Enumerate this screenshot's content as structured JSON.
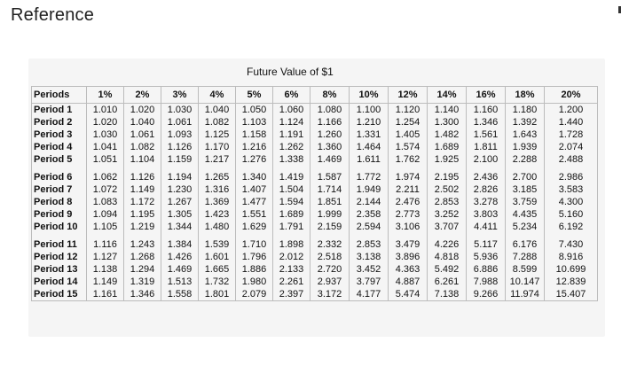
{
  "page": {
    "title": "Reference"
  },
  "table": {
    "title": "Future Value of $1",
    "corner_header": "Periods",
    "rate_headers": [
      "1%",
      "2%",
      "3%",
      "4%",
      "5%",
      "6%",
      "8%",
      "10%",
      "12%",
      "14%",
      "16%",
      "18%",
      "20%"
    ],
    "rows": [
      {
        "label": "Period 1",
        "values": [
          "1.010",
          "1.020",
          "1.030",
          "1.040",
          "1.050",
          "1.060",
          "1.080",
          "1.100",
          "1.120",
          "1.140",
          "1.160",
          "1.180",
          "1.200"
        ]
      },
      {
        "label": "Period 2",
        "values": [
          "1.020",
          "1.040",
          "1.061",
          "1.082",
          "1.103",
          "1.124",
          "1.166",
          "1.210",
          "1.254",
          "1.300",
          "1.346",
          "1.392",
          "1.440"
        ]
      },
      {
        "label": "Period 3",
        "values": [
          "1.030",
          "1.061",
          "1.093",
          "1.125",
          "1.158",
          "1.191",
          "1.260",
          "1.331",
          "1.405",
          "1.482",
          "1.561",
          "1.643",
          "1.728"
        ]
      },
      {
        "label": "Period 4",
        "values": [
          "1.041",
          "1.082",
          "1.126",
          "1.170",
          "1.216",
          "1.262",
          "1.360",
          "1.464",
          "1.574",
          "1.689",
          "1.811",
          "1.939",
          "2.074"
        ]
      },
      {
        "label": "Period 5",
        "values": [
          "1.051",
          "1.104",
          "1.159",
          "1.217",
          "1.276",
          "1.338",
          "1.469",
          "1.611",
          "1.762",
          "1.925",
          "2.100",
          "2.288",
          "2.488"
        ]
      },
      {
        "label": "Period 6",
        "values": [
          "1.062",
          "1.126",
          "1.194",
          "1.265",
          "1.340",
          "1.419",
          "1.587",
          "1.772",
          "1.974",
          "2.195",
          "2.436",
          "2.700",
          "2.986"
        ]
      },
      {
        "label": "Period 7",
        "values": [
          "1.072",
          "1.149",
          "1.230",
          "1.316",
          "1.407",
          "1.504",
          "1.714",
          "1.949",
          "2.211",
          "2.502",
          "2.826",
          "3.185",
          "3.583"
        ]
      },
      {
        "label": "Period 8",
        "values": [
          "1.083",
          "1.172",
          "1.267",
          "1.369",
          "1.477",
          "1.594",
          "1.851",
          "2.144",
          "2.476",
          "2.853",
          "3.278",
          "3.759",
          "4.300"
        ]
      },
      {
        "label": "Period 9",
        "values": [
          "1.094",
          "1.195",
          "1.305",
          "1.423",
          "1.551",
          "1.689",
          "1.999",
          "2.358",
          "2.773",
          "3.252",
          "3.803",
          "4.435",
          "5.160"
        ]
      },
      {
        "label": "Period 10",
        "values": [
          "1.105",
          "1.219",
          "1.344",
          "1.480",
          "1.629",
          "1.791",
          "2.159",
          "2.594",
          "3.106",
          "3.707",
          "4.411",
          "5.234",
          "6.192"
        ]
      },
      {
        "label": "Period 11",
        "values": [
          "1.116",
          "1.243",
          "1.384",
          "1.539",
          "1.710",
          "1.898",
          "2.332",
          "2.853",
          "3.479",
          "4.226",
          "5.117",
          "6.176",
          "7.430"
        ]
      },
      {
        "label": "Period 12",
        "values": [
          "1.127",
          "1.268",
          "1.426",
          "1.601",
          "1.796",
          "2.012",
          "2.518",
          "3.138",
          "3.896",
          "4.818",
          "5.936",
          "7.288",
          "8.916"
        ]
      },
      {
        "label": "Period 13",
        "values": [
          "1.138",
          "1.294",
          "1.469",
          "1.665",
          "1.886",
          "2.133",
          "2.720",
          "3.452",
          "4.363",
          "5.492",
          "6.886",
          "8.599",
          "10.699"
        ]
      },
      {
        "label": "Period 14",
        "values": [
          "1.149",
          "1.319",
          "1.513",
          "1.732",
          "1.980",
          "2.261",
          "2.937",
          "3.797",
          "4.887",
          "6.261",
          "7.988",
          "10.147",
          "12.839"
        ]
      },
      {
        "label": "Period 15",
        "values": [
          "1.161",
          "1.346",
          "1.558",
          "1.801",
          "2.079",
          "2.397",
          "3.172",
          "4.177",
          "5.474",
          "7.138",
          "9.266",
          "11.974",
          "15.407"
        ]
      }
    ]
  }
}
